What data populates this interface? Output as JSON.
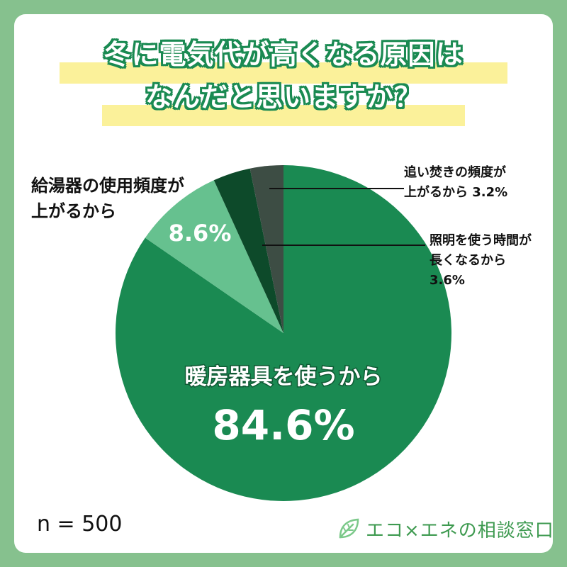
{
  "title": {
    "line1": "冬に電気代が高くなる原因は",
    "line2": "なんだと思いますか？"
  },
  "colors": {
    "background": "#86c18e",
    "title_outline": "#1a8a52",
    "title_highlight": "#fbf19a",
    "brand_green": "#3e9a50"
  },
  "chart_data": {
    "type": "pie",
    "start": "12 o'clock, clockwise",
    "slices": [
      {
        "label": "暖房器具を使うから",
        "value": 84.6,
        "value_text": "84.6%",
        "color": "#1a8a52"
      },
      {
        "label": "給湯器の使用頻度が上がるから",
        "label_lines": [
          "給湯器の使用頻度が",
          "上がるから"
        ],
        "value": 8.6,
        "value_text": "8.6%",
        "color": "#66c18f"
      },
      {
        "label": "照明を使う時間が長くなるから",
        "label_lines": [
          "照明を使う時間が",
          "長くなるから",
          "3.6%"
        ],
        "value": 3.6,
        "color": "#0d4a2a"
      },
      {
        "label": "追い焚きの頻度が上がるから",
        "label_lines": [
          "追い焚きの頻度が",
          "上がるから 3.2%"
        ],
        "value": 3.2,
        "color": "#3d4d44"
      }
    ]
  },
  "sample_size": "n = 500",
  "brand": {
    "name": "エコ×エネの相談窓口",
    "icon": "leaf-icon"
  }
}
